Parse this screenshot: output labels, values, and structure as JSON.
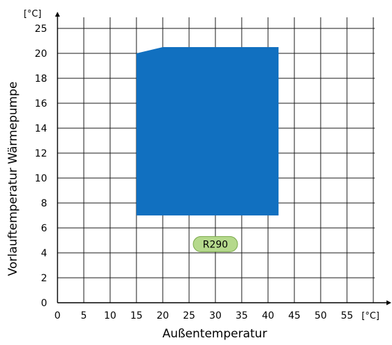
{
  "chart_data": {
    "type": "area",
    "title": "",
    "xlabel": "Außentemperatur",
    "ylabel": "Vorlauftemperatur Wärmepumpe",
    "x_unit": "[°C]",
    "y_unit": "[°C]",
    "xlim": [
      0,
      60
    ],
    "ylim": [
      0,
      25
    ],
    "x_ticks": [
      0,
      5,
      10,
      15,
      20,
      25,
      30,
      35,
      40,
      45,
      50,
      55
    ],
    "y_ticks": [
      0,
      2,
      4,
      6,
      8,
      10,
      12,
      14,
      16,
      18,
      20,
      25
    ],
    "y_grid": [
      0,
      2,
      4,
      6,
      8,
      10,
      12,
      14,
      16,
      18,
      20,
      22
    ],
    "grid": true,
    "series": [
      {
        "name": "R290",
        "color": "#1170c0",
        "points": [
          [
            15,
            7
          ],
          [
            15,
            20
          ],
          [
            20,
            20.5
          ],
          [
            42,
            20.5
          ],
          [
            42,
            7
          ]
        ]
      }
    ],
    "annotations": [
      {
        "text": "R290",
        "x": 30,
        "y": 4.7,
        "fill": "#b5d98c",
        "stroke": "#7aa84a"
      }
    ]
  }
}
